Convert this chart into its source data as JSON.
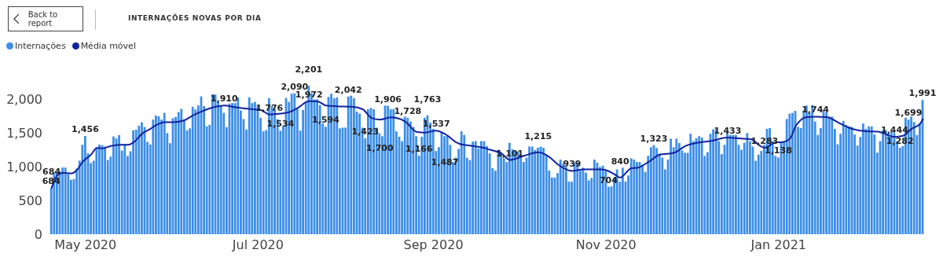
{
  "chart_data": {
    "type": "bar",
    "title": "INTERNAÇÕES NOVAS POR DIA",
    "annotations": [
      "Back to report"
    ],
    "legend": "top left",
    "x": [
      "2020-04-19",
      "2020-04-20",
      "2020-04-21",
      "2020-04-22",
      "2020-04-23",
      "2020-04-24",
      "2020-04-25",
      "2020-04-26",
      "2020-04-27",
      "2020-04-28",
      "2020-04-29",
      "2020-04-30",
      "2020-05-01",
      "2020-05-02",
      "2020-05-03",
      "2020-05-04",
      "2020-05-05",
      "2020-05-06",
      "2020-05-07",
      "2020-05-08",
      "2020-05-09",
      "2020-05-10",
      "2020-05-11",
      "2020-05-12",
      "2020-05-13",
      "2020-05-14",
      "2020-05-15",
      "2020-05-16",
      "2020-05-17",
      "2020-05-18",
      "2020-05-19",
      "2020-05-20",
      "2020-05-21",
      "2020-05-22",
      "2020-05-23",
      "2020-05-24",
      "2020-05-25",
      "2020-05-26",
      "2020-05-27",
      "2020-05-28",
      "2020-05-29",
      "2020-05-30",
      "2020-05-31",
      "2020-06-01",
      "2020-06-02",
      "2020-06-03",
      "2020-06-04",
      "2020-06-05",
      "2020-06-06",
      "2020-06-07",
      "2020-06-08",
      "2020-06-09",
      "2020-06-10",
      "2020-06-11",
      "2020-06-12",
      "2020-06-13",
      "2020-06-14",
      "2020-06-15",
      "2020-06-16",
      "2020-06-17",
      "2020-06-18",
      "2020-06-19",
      "2020-06-20",
      "2020-06-21",
      "2020-06-22",
      "2020-06-23",
      "2020-06-24",
      "2020-06-25",
      "2020-06-26",
      "2020-06-27",
      "2020-06-28",
      "2020-06-29",
      "2020-06-30",
      "2020-07-01",
      "2020-07-02",
      "2020-07-03",
      "2020-07-04",
      "2020-07-05",
      "2020-07-06",
      "2020-07-07",
      "2020-07-08",
      "2020-07-09",
      "2020-07-10",
      "2020-07-11",
      "2020-07-12",
      "2020-07-13",
      "2020-07-14",
      "2020-07-15",
      "2020-07-16",
      "2020-07-17",
      "2020-07-18",
      "2020-07-19",
      "2020-07-20",
      "2020-07-21",
      "2020-07-22",
      "2020-07-23",
      "2020-07-24",
      "2020-07-25",
      "2020-07-26",
      "2020-07-27",
      "2020-07-28",
      "2020-07-29",
      "2020-07-30",
      "2020-07-31",
      "2020-08-01",
      "2020-08-02",
      "2020-08-03",
      "2020-08-04",
      "2020-08-05",
      "2020-08-06",
      "2020-08-07",
      "2020-08-08",
      "2020-08-09",
      "2020-08-10",
      "2020-08-11",
      "2020-08-12",
      "2020-08-13",
      "2020-08-14",
      "2020-08-15",
      "2020-08-16",
      "2020-08-17",
      "2020-08-18",
      "2020-08-19",
      "2020-08-20",
      "2020-08-21",
      "2020-08-22",
      "2020-08-23",
      "2020-08-24",
      "2020-08-25",
      "2020-08-26",
      "2020-08-27",
      "2020-08-28",
      "2020-08-29",
      "2020-08-30",
      "2020-08-31",
      "2020-09-01",
      "2020-09-02",
      "2020-09-03",
      "2020-09-04",
      "2020-09-05",
      "2020-09-06",
      "2020-09-07",
      "2020-09-08",
      "2020-09-09",
      "2020-09-10",
      "2020-09-11",
      "2020-09-12",
      "2020-09-13",
      "2020-09-14",
      "2020-09-15",
      "2020-09-16",
      "2020-09-17",
      "2020-09-18",
      "2020-09-19",
      "2020-09-20",
      "2020-09-21",
      "2020-09-22",
      "2020-09-23",
      "2020-09-24",
      "2020-09-25",
      "2020-09-26",
      "2020-09-27",
      "2020-09-28",
      "2020-09-29",
      "2020-09-30",
      "2020-10-01",
      "2020-10-02",
      "2020-10-03",
      "2020-10-04",
      "2020-10-05",
      "2020-10-06",
      "2020-10-07",
      "2020-10-08",
      "2020-10-09",
      "2020-10-10",
      "2020-10-11",
      "2020-10-12",
      "2020-10-13",
      "2020-10-14",
      "2020-10-15",
      "2020-10-16",
      "2020-10-17",
      "2020-10-18",
      "2020-10-19",
      "2020-10-20",
      "2020-10-21",
      "2020-10-22",
      "2020-10-23",
      "2020-10-24",
      "2020-10-25",
      "2020-10-26",
      "2020-10-27",
      "2020-10-28",
      "2020-10-29",
      "2020-10-30",
      "2020-10-31",
      "2020-11-01",
      "2020-11-02",
      "2020-11-03",
      "2020-11-04",
      "2020-11-05",
      "2020-11-06",
      "2020-11-07",
      "2020-11-08",
      "2020-11-09",
      "2020-11-10",
      "2020-11-11",
      "2020-11-12",
      "2020-11-13",
      "2020-11-14",
      "2020-11-15",
      "2020-11-16",
      "2020-11-17",
      "2020-11-18",
      "2020-11-19",
      "2020-11-20",
      "2020-11-21",
      "2020-11-22",
      "2020-11-23",
      "2020-11-24",
      "2020-11-25",
      "2020-11-26",
      "2020-11-27",
      "2020-11-28",
      "2020-11-29",
      "2020-11-30",
      "2020-12-01",
      "2020-12-02",
      "2020-12-03",
      "2020-12-04",
      "2020-12-05",
      "2020-12-06",
      "2020-12-07",
      "2020-12-08",
      "2020-12-09",
      "2020-12-10",
      "2020-12-11",
      "2020-12-12",
      "2020-12-13",
      "2020-12-14",
      "2020-12-15",
      "2020-12-16",
      "2020-12-17",
      "2020-12-18",
      "2020-12-19",
      "2020-12-20",
      "2020-12-21",
      "2020-12-22",
      "2020-12-23",
      "2020-12-24",
      "2020-12-25",
      "2020-12-26",
      "2020-12-27",
      "2020-12-28",
      "2020-12-29",
      "2020-12-30",
      "2020-12-31",
      "2021-01-01",
      "2021-01-02",
      "2021-01-03",
      "2021-01-04",
      "2021-01-05",
      "2021-01-06",
      "2021-01-07",
      "2021-01-08",
      "2021-01-09",
      "2021-01-10",
      "2021-01-11",
      "2021-01-12",
      "2021-01-13",
      "2021-01-14",
      "2021-01-15",
      "2021-01-16",
      "2021-01-17",
      "2021-01-18",
      "2021-01-19",
      "2021-01-20",
      "2021-01-21",
      "2021-01-22",
      "2021-01-23",
      "2021-01-24",
      "2021-01-25",
      "2021-01-26",
      "2021-01-27",
      "2021-01-28",
      "2021-01-29",
      "2021-01-30",
      "2021-01-31",
      "2021-02-01",
      "2021-02-02",
      "2021-02-03",
      "2021-02-04",
      "2021-02-05",
      "2021-02-06",
      "2021-02-07",
      "2021-02-08",
      "2021-02-09",
      "2021-02-10",
      "2021-02-11",
      "2021-02-12",
      "2021-02-13",
      "2021-02-14",
      "2021-02-15",
      "2021-02-16",
      "2021-02-17",
      "2021-02-18",
      "2021-02-19",
      "2021-02-20",
      "2021-02-21"
    ],
    "xlim": [
      "2020-04-18",
      "2021-02-22"
    ],
    "xticks": [
      {
        "value": "2020-05-01",
        "label": "May 2020"
      },
      {
        "value": "2020-07-01",
        "label": "Jul 2020"
      },
      {
        "value": "2020-09-01",
        "label": "Sep 2020"
      },
      {
        "value": "2020-11-01",
        "label": "Nov 2020"
      },
      {
        "value": "2021-01-01",
        "label": "Jan 2021"
      }
    ],
    "ylim": [
      0,
      2250
    ],
    "yticks": [
      0,
      500,
      {
        "value": 1000,
        "label": "1,000"
      },
      {
        "value": 1500,
        "label": "1,500"
      },
      {
        "value": 2000,
        "label": "2,000"
      }
    ],
    "series": [
      {
        "name": "Internações",
        "color": "#3d8ee8",
        "values": [
          684,
          916,
          927,
          935,
          989,
          989,
          891,
          807,
          818,
          975,
          1091,
          1327,
          1456,
          1200,
          1055,
          1091,
          1270,
          1330,
          1320,
          1300,
          1100,
          1150,
          1450,
          1420,
          1470,
          1240,
          1340,
          1160,
          1230,
          1540,
          1550,
          1610,
          1660,
          1590,
          1370,
          1330,
          1700,
          1760,
          1750,
          1700,
          1800,
          1500,
          1350,
          1720,
          1740,
          1810,
          1860,
          1700,
          1540,
          1570,
          1890,
          1850,
          1910,
          2044,
          1900,
          1600,
          1621,
          2076,
          2073,
          1963,
          1910,
          1800,
          1588,
          1938,
          1945,
          1945,
          2029,
          1836,
          1708,
          1552,
          2029,
          1945,
          1963,
          1898,
          1727,
          1526,
          1545,
          2018,
          1900,
          1860,
          1708,
          1534,
          1600,
          2022,
          1963,
          2084,
          2090,
          1861,
          1537,
          1843,
          1963,
          2201,
          2091,
          2000,
          2000,
          1916,
          1643,
          1594,
          2036,
          2084,
          2018,
          2029,
          1570,
          1581,
          1581,
          2042,
          2055,
          2018,
          1818,
          1789,
          1581,
          1423,
          1854,
          1873,
          1854,
          1581,
          1497,
          1454,
          1909,
          1906,
          1854,
          1854,
          1526,
          1446,
          1380,
          1745,
          1728,
          1672,
          1592,
          1454,
          1166,
          1446,
          1727,
          1763,
          1654,
          1563,
          1235,
          1290,
          1508,
          1454,
          1461,
          1326,
          1071,
          1137,
          1264,
          1526,
          1472,
          1133,
          1097,
          1373,
          1381,
          1271,
          1381,
          1381,
          1308,
          1198,
          980,
          943,
          1253,
          1217,
          1125,
          1071,
          1355,
          1260,
          1228,
          1228,
          1144,
          1071,
          1137,
          1300,
          1300,
          1250,
          1282,
          1300,
          1282,
          1180,
          943,
          841,
          841,
          907,
          1107,
          1053,
          998,
          780,
          780,
          1060,
          1060,
          943,
          987,
          914,
          798,
          834,
          1107,
          1060,
          998,
          1016,
          943,
          704,
          710,
          834,
          961,
          780,
          987,
          780,
          871,
          1125,
          1107,
          1071,
          1071,
          1035,
          925,
          1162,
          1290,
          1323,
          1279,
          1198,
          1137,
          961,
          1107,
          1417,
          1290,
          1417,
          1352,
          1242,
          1206,
          1206,
          1490,
          1381,
          1424,
          1454,
          1435,
          1162,
          1217,
          1490,
          1556,
          1556,
          1381,
          1188,
          1326,
          1508,
          1472,
          1472,
          1472,
          1326,
          1253,
          1355,
          1501,
          1381,
          1300,
          1089,
          1180,
          1235,
          1326,
          1563,
          1574,
          1381,
          1162,
          1138,
          1373,
          1373,
          1708,
          1789,
          1800,
          1829,
          1592,
          1574,
          1836,
          1909,
          1800,
          1916,
          1672,
          1472,
          1574,
          1836,
          1807,
          1745,
          1745,
          1563,
          1333,
          1490,
          1679,
          1617,
          1599,
          1592,
          1479,
          1315,
          1443,
          1643,
          1563,
          1599,
          1599,
          1479,
          1209,
          1381,
          1545,
          1545,
          1497,
          1526,
          1497,
          1381,
          1282,
          1308,
          1727,
          1699,
          1745,
          1665,
          1472,
          1643,
          1991
        ],
        "value_labels": [
          "684",
          null,
          null,
          null,
          null,
          null,
          null,
          null,
          null,
          null,
          null,
          null,
          "1,456",
          null,
          null,
          null,
          null,
          null,
          null,
          null,
          null,
          null,
          null,
          null,
          null,
          null,
          null,
          null,
          null,
          null,
          null,
          null,
          null,
          null,
          null,
          null,
          null,
          null,
          null,
          null,
          null,
          null,
          null,
          null,
          null,
          null,
          null,
          null,
          null,
          null,
          null,
          null,
          null,
          null,
          null,
          null,
          null,
          null,
          null,
          null,
          null,
          null,
          null,
          null,
          null,
          null,
          null,
          null,
          null,
          null,
          null,
          null,
          null,
          null,
          null,
          null,
          null,
          null,
          null,
          null,
          null,
          "1,534",
          null,
          null,
          null,
          null,
          "2,090",
          null,
          null,
          null,
          null,
          "2,201",
          null,
          null,
          null,
          null,
          null,
          "1,594",
          null,
          null,
          null,
          null,
          null,
          null,
          null,
          "2,042",
          null,
          null,
          null,
          null,
          null,
          "1,423",
          null,
          null,
          null,
          null,
          null,
          null,
          null,
          "1,906",
          null,
          null,
          null,
          null,
          null,
          null,
          "1,728",
          null,
          null,
          null,
          "1,166",
          null,
          null,
          "1,763",
          null,
          null,
          null,
          null,
          null,
          null,
          null,
          null,
          null,
          null,
          null,
          null,
          null,
          null,
          null,
          null,
          null,
          null,
          null,
          null,
          null,
          null,
          null,
          null,
          null,
          null,
          null,
          null,
          null,
          null,
          null,
          null,
          null,
          null,
          null,
          null,
          null,
          null,
          null,
          null,
          null,
          null,
          null,
          null,
          null,
          null,
          null,
          null,
          null,
          null,
          null,
          null,
          null,
          null,
          null,
          null,
          null,
          null,
          null,
          null,
          null,
          null,
          null,
          "704",
          null,
          null,
          null,
          null,
          null,
          null,
          null,
          null,
          null,
          null,
          null,
          null,
          null,
          null,
          null,
          "1,323",
          null,
          null,
          null,
          null,
          null,
          null,
          null,
          null,
          null,
          null,
          null,
          null,
          null,
          null,
          null,
          null,
          null,
          null,
          null,
          null,
          null,
          null,
          null,
          null,
          null,
          null,
          null,
          null,
          null,
          null,
          null,
          null,
          null,
          null,
          null,
          null,
          null,
          null,
          null,
          null,
          null,
          null,
          null,
          "1,138",
          null,
          null,
          null,
          null,
          null,
          null,
          null,
          null,
          null,
          null,
          null,
          null,
          null,
          null,
          null,
          null,
          null,
          null,
          null,
          null,
          null,
          null,
          null,
          null,
          null,
          null,
          null,
          null,
          null,
          null,
          null,
          null,
          null,
          null,
          null,
          null,
          null,
          null,
          null,
          null,
          null,
          null,
          "1,282",
          null,
          null,
          "1,699",
          null,
          null,
          null,
          null,
          "1,991"
        ]
      },
      {
        "name": "Média móvel",
        "type": "line",
        "color": "#12239e",
        "x": [
          "2020-04-19",
          "2020-04-21",
          "2020-04-23",
          "2020-04-26",
          "2020-04-28",
          "2020-04-30",
          "2020-05-03",
          "2020-05-05",
          "2020-05-07",
          "2020-05-10",
          "2020-05-13",
          "2020-05-16",
          "2020-05-18",
          "2020-05-21",
          "2020-05-24",
          "2020-05-26",
          "2020-05-29",
          "2020-06-01",
          "2020-06-05",
          "2020-06-08",
          "2020-06-12",
          "2020-06-16",
          "2020-06-19",
          "2020-06-23",
          "2020-06-27",
          "2020-07-02",
          "2020-07-05",
          "2020-07-09",
          "2020-07-12",
          "2020-07-15",
          "2020-07-19",
          "2020-07-22",
          "2020-07-25",
          "2020-07-29",
          "2020-08-03",
          "2020-08-07",
          "2020-08-10",
          "2020-08-13",
          "2020-08-17",
          "2020-08-22",
          "2020-08-26",
          "2020-08-29",
          "2020-09-02",
          "2020-09-05",
          "2020-09-10",
          "2020-09-15",
          "2020-09-19",
          "2020-09-21",
          "2020-09-25",
          "2020-09-28",
          "2020-10-03",
          "2020-10-08",
          "2020-10-12",
          "2020-10-15",
          "2020-10-20",
          "2020-10-24",
          "2020-10-28",
          "2020-10-31",
          "2020-11-04",
          "2020-11-06",
          "2020-11-10",
          "2020-11-12",
          "2020-11-16",
          "2020-11-20",
          "2020-11-25",
          "2020-11-29",
          "2020-12-04",
          "2020-12-08",
          "2020-12-14",
          "2020-12-17",
          "2020-12-22",
          "2020-12-27",
          "2020-12-31",
          "2021-01-02",
          "2021-01-05",
          "2021-01-07",
          "2021-01-11",
          "2021-01-14",
          "2021-01-18",
          "2021-01-23",
          "2021-01-27",
          "2021-02-01",
          "2021-02-05",
          "2021-02-11",
          "2021-02-14",
          "2021-02-17",
          "2021-02-20",
          "2021-02-21"
        ],
        "values": [
          684,
          873,
          909,
          902,
          953,
          1073,
          1182,
          1280,
          1273,
          1309,
          1327,
          1327,
          1363,
          1491,
          1564,
          1618,
          1662,
          1662,
          1691,
          1763,
          1836,
          1891,
          1910,
          1883,
          1861,
          1843,
          1776,
          1789,
          1810,
          1872,
          1972,
          1970,
          1909,
          1898,
          1891,
          1854,
          1727,
          1700,
          1734,
          1672,
          1519,
          1508,
          1537,
          1487,
          1344,
          1308,
          1279,
          1253,
          1198,
          1101,
          1162,
          1215,
          1144,
          1035,
          939,
          962,
          962,
          960,
          889,
          840,
          980,
          985,
          1071,
          1180,
          1206,
          1308,
          1362,
          1381,
          1433,
          1424,
          1410,
          1283,
          1362,
          1365,
          1417,
          1599,
          1738,
          1744,
          1738,
          1636,
          1563,
          1526,
          1520,
          1444,
          1460,
          1563,
          1636,
          1708
        ],
        "value_labels": [
          "684",
          null,
          null,
          null,
          null,
          null,
          null,
          null,
          null,
          null,
          null,
          null,
          null,
          null,
          null,
          null,
          null,
          null,
          null,
          null,
          null,
          null,
          "1,910",
          null,
          null,
          null,
          "1,776",
          null,
          null,
          null,
          "1,972",
          null,
          null,
          null,
          null,
          null,
          null,
          "1,700",
          null,
          null,
          null,
          null,
          "1,537",
          "1,487",
          null,
          null,
          null,
          null,
          null,
          "1,101",
          null,
          "1,215",
          null,
          null,
          "939",
          null,
          null,
          null,
          null,
          "840",
          null,
          null,
          null,
          null,
          null,
          null,
          null,
          null,
          "1,433",
          null,
          null,
          "1,283",
          null,
          null,
          null,
          null,
          null,
          "1,744",
          null,
          null,
          null,
          null,
          null,
          "1,444",
          null,
          null,
          null,
          null
        ]
      }
    ]
  }
}
